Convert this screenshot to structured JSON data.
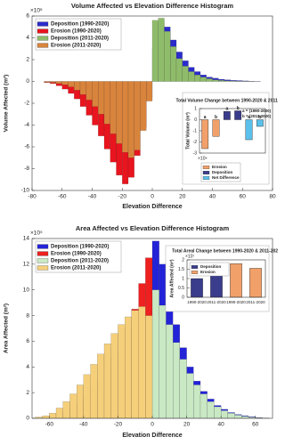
{
  "chart_data": [
    {
      "type": "histogram",
      "title": "Volume Affected vs Elevation Difference Histogram",
      "xlabel": "Elevation Difference",
      "ylabel": "Volume Affected (m³)",
      "y_exponent": "×10⁶",
      "bins": [
        -72,
        -68,
        -64,
        -60,
        -56,
        -52,
        -48,
        -44,
        -40,
        -36,
        -32,
        -28,
        -24,
        -20,
        -16,
        -12,
        -8,
        -4,
        0,
        4,
        8,
        12,
        16,
        20,
        24,
        28,
        32,
        36,
        40,
        44,
        48,
        52,
        56,
        60,
        64,
        68,
        72
      ],
      "series": [
        {
          "name": "Deposition (1990-2020)",
          "color": "#2b2bcc",
          "values": [
            0,
            0,
            0,
            0,
            0,
            0,
            0,
            0,
            0,
            0,
            0,
            0,
            0,
            0,
            0,
            0,
            0,
            0,
            3.0,
            5.4,
            5.0,
            3.8,
            2.7,
            1.9,
            1.3,
            0.9,
            0.6,
            0.4,
            0.3,
            0.2,
            0.15,
            0.1,
            0.08,
            0.05,
            0.03,
            0.02
          ]
        },
        {
          "name": "Erosion (1990-2020)",
          "color": "#e8141e",
          "values": [
            -0.1,
            -0.2,
            -0.4,
            -0.7,
            -1.1,
            -1.6,
            -2.3,
            -3.1,
            -4.0,
            -5.0,
            -6.2,
            -7.4,
            -8.6,
            -9.4,
            -8.8,
            -6.8,
            -4.2,
            -1.5,
            0,
            0,
            0,
            0,
            0,
            0,
            0,
            0,
            0,
            0,
            0,
            0,
            0,
            0,
            0,
            0,
            0,
            0
          ]
        },
        {
          "name": "Deposition (2011-2020)",
          "color": "#8fbc6a",
          "values": [
            0,
            0,
            0,
            0,
            0,
            0,
            0,
            0,
            0,
            0,
            0,
            0,
            0,
            0,
            0,
            0,
            0,
            0,
            5.6,
            5.8,
            4.6,
            3.2,
            2.1,
            1.4,
            0.9,
            0.6,
            0.4,
            0.25,
            0.15,
            0.1,
            0.06,
            0.04,
            0.02,
            0.01,
            0.01,
            0
          ]
        },
        {
          "name": "Erosion (2011-2020)",
          "color": "#d9843c",
          "values": [
            -0.05,
            -0.1,
            -0.2,
            -0.3,
            -0.5,
            -0.8,
            -1.2,
            -1.7,
            -2.3,
            -3.0,
            -3.9,
            -4.8,
            -5.7,
            -6.5,
            -7.0,
            -6.3,
            -4.5,
            -1.8,
            0,
            0,
            0,
            0,
            0,
            0,
            0,
            0,
            0,
            0,
            0,
            0,
            0,
            0,
            0,
            0,
            0,
            0
          ]
        }
      ],
      "xlim": [
        -80,
        80
      ],
      "xticks": [
        -80,
        -60,
        -40,
        -20,
        0,
        20,
        40,
        60,
        80
      ],
      "ylim": [
        -10,
        6
      ],
      "yticks": [
        -10,
        -8,
        -6,
        -4,
        -2,
        0,
        2,
        4,
        6
      ],
      "legend": "upper left"
    },
    {
      "type": "bar",
      "title": "Total Volume Change between 1990-2020 & 2011-2020",
      "ylabel": "Total Volume (m³)",
      "y_exponent": "×10⁸",
      "categories": [
        "a",
        "b",
        "a",
        "b",
        "a",
        "b"
      ],
      "series": [
        {
          "name": "Erosion",
          "color": "#f2a06a",
          "values": [
            -2.6,
            -1.5,
            null,
            null,
            null,
            null
          ]
        },
        {
          "name": "Deposition",
          "color": "#3a3c8c",
          "values": [
            null,
            null,
            0.75,
            0.8,
            null,
            null
          ]
        },
        {
          "name": "Net Difference",
          "color": "#5bc0eb",
          "values": [
            null,
            null,
            null,
            null,
            -1.8,
            -0.6
          ]
        }
      ],
      "annotations": [
        "a = (1990-2020)",
        "b = (2011-2020)"
      ],
      "ylim": [
        -3,
        1
      ],
      "yticks": [
        -3,
        -2,
        -1,
        0,
        1
      ],
      "legend": "below"
    },
    {
      "type": "histogram",
      "title": "Area Affected vs Elevation Difference Histogram",
      "xlabel": "Elevation Difference",
      "ylabel": "Area Affected (m²)",
      "y_exponent": "×10⁵",
      "bins": [
        -68,
        -64,
        -60,
        -56,
        -52,
        -48,
        -44,
        -40,
        -36,
        -32,
        -28,
        -24,
        -20,
        -16,
        -12,
        -8,
        -4,
        0,
        4,
        8,
        12,
        16,
        20,
        24,
        28,
        32,
        36,
        40,
        44,
        48,
        52,
        56,
        60,
        64,
        68
      ],
      "series": [
        {
          "name": "Deposition (1990-2020)",
          "color": "#2323d8",
          "values": [
            0,
            0,
            0,
            0,
            0,
            0,
            0,
            0,
            0,
            0,
            0,
            0,
            0,
            0,
            0,
            0,
            0,
            13.8,
            12.0,
            9.5,
            7.3,
            5.5,
            4.0,
            2.9,
            2.1,
            1.5,
            1.0,
            0.7,
            0.45,
            0.3,
            0.2,
            0.12,
            0.06,
            0.03
          ]
        },
        {
          "name": "Erosion (1990-2020)",
          "color": "#ee2020",
          "values": [
            0.05,
            0.1,
            0.15,
            0.3,
            0.5,
            0.8,
            1.2,
            1.7,
            2.3,
            3.0,
            3.8,
            4.8,
            5.8,
            7.0,
            8.5,
            10.5,
            12.5,
            0,
            0,
            0,
            0,
            0,
            0,
            0,
            0,
            0,
            0,
            0,
            0,
            0,
            0,
            0,
            0,
            0
          ]
        },
        {
          "name": "Deposition (2011-2020)",
          "color": "#c9e8c4",
          "values": [
            0,
            0,
            0,
            0,
            0,
            0,
            0,
            0,
            0,
            0,
            0,
            0,
            0,
            0,
            0,
            0,
            0,
            10.0,
            8.8,
            7.3,
            5.9,
            4.6,
            3.5,
            2.6,
            1.9,
            1.3,
            0.9,
            0.6,
            0.4,
            0.25,
            0.15,
            0.08,
            0.04,
            0.02
          ]
        },
        {
          "name": "Erosion (2011-2020)",
          "color": "#f5cf7a",
          "values": [
            0.1,
            0.2,
            0.4,
            0.8,
            1.3,
            1.9,
            2.6,
            3.4,
            4.2,
            5.0,
            5.8,
            6.6,
            7.3,
            7.9,
            8.4,
            8.7,
            8.0,
            0,
            0,
            0,
            0,
            0,
            0,
            0,
            0,
            0,
            0,
            0,
            0,
            0,
            0,
            0,
            0,
            0
          ]
        }
      ],
      "xlim": [
        -70,
        70
      ],
      "xticks": [
        -60,
        -40,
        -20,
        0,
        20,
        40,
        60
      ],
      "ylim": [
        0,
        14
      ],
      "yticks": [
        0,
        2,
        4,
        6,
        8,
        10,
        12,
        14
      ],
      "legend": "upper left"
    },
    {
      "type": "bar",
      "title": "Total Areal Change between 1990-2020 & 2011-2020",
      "ylabel": "Area Affected (m²)",
      "y_exponent": "×10⁷",
      "categories": [
        "1990-2020",
        "2011-2020",
        "1990-2020",
        "2011-2020"
      ],
      "series": [
        {
          "name": "Deposition",
          "color": "#3a3c8c",
          "values": [
            1.0,
            1.3,
            null,
            null
          ]
        },
        {
          "name": "Erosion",
          "color": "#f2a06a",
          "values": [
            null,
            null,
            1.8,
            1.55
          ]
        }
      ],
      "ylim": [
        0,
        2
      ],
      "yticks": [
        0,
        0.5,
        1,
        1.5,
        2
      ],
      "legend": "upper left"
    }
  ]
}
